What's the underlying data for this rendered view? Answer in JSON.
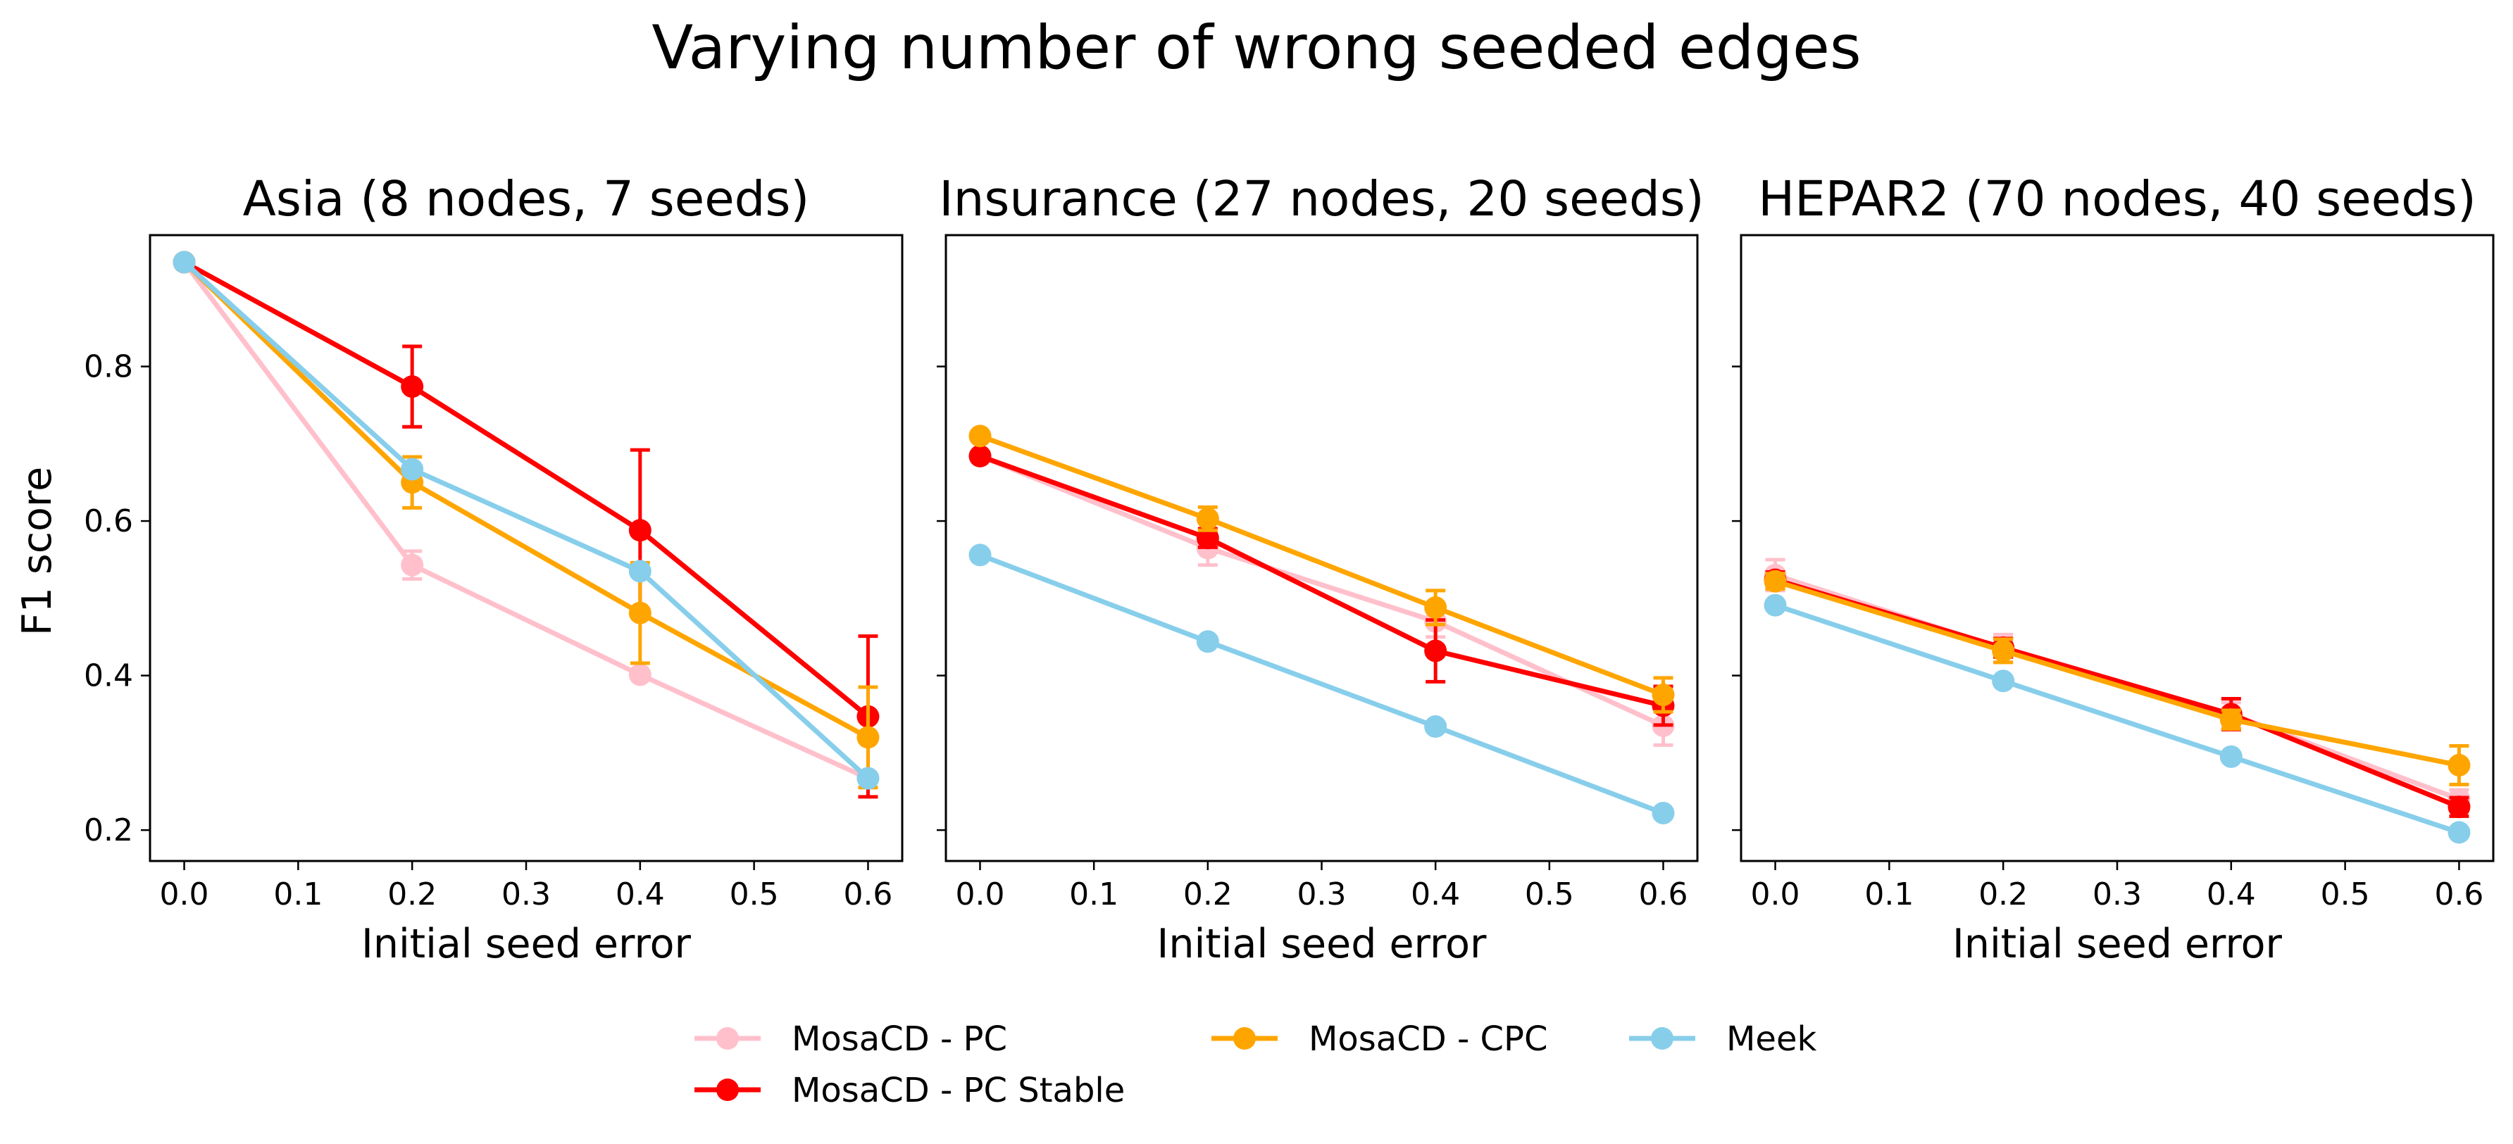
{
  "chart_data": {
    "type": "line",
    "title": "Varying number of wrong seeded edges",
    "ylabel": "F1 score",
    "xlim": [
      -0.03,
      0.63
    ],
    "ylim": [
      0.16,
      0.97
    ],
    "xticks": [
      "0.0",
      "0.1",
      "0.2",
      "0.3",
      "0.4",
      "0.5",
      "0.6"
    ],
    "yticks": [
      "0.2",
      "0.4",
      "0.6",
      "0.8"
    ],
    "colors": {
      "MosaCD - PC": "#ffc0cb",
      "MosaCD - PC Stable": "#ff0000",
      "MosaCD - CPC": "#ffa500",
      "Meek": "#87ceeb"
    },
    "legend": [
      {
        "label": "MosaCD - PC",
        "color": "#ffc0cb"
      },
      {
        "label": "MosaCD - PC Stable",
        "color": "#ff0000"
      },
      {
        "label": "MosaCD - CPC",
        "color": "#ffa500"
      },
      {
        "label": "Meek",
        "color": "#87ceeb"
      }
    ],
    "legend_position": "bottom-center",
    "panels": [
      {
        "title": "Asia (8 nodes, 7 seeds)",
        "xlabel": "Initial seed error",
        "x": [
          0.0,
          0.2,
          0.4,
          0.6
        ],
        "series": [
          {
            "name": "MosaCD - PC",
            "values": [
              0.935,
              0.543,
              0.401,
              0.267
            ],
            "errors": [
              0,
              0.018,
              0,
              0
            ]
          },
          {
            "name": "MosaCD - CPC",
            "values": [
              0.935,
              0.65,
              0.481,
              0.32
            ],
            "errors": [
              0,
              0.033,
              0.065,
              0.065
            ]
          },
          {
            "name": "Meek",
            "values": [
              0.935,
              0.667,
              0.535,
              0.267
            ],
            "errors": [
              0,
              0,
              0,
              0
            ]
          },
          {
            "name": "MosaCD - PC Stable",
            "values": [
              0.935,
              0.774,
              0.588,
              0.347
            ],
            "errors": [
              0,
              0.052,
              0.104,
              0.104
            ]
          }
        ]
      },
      {
        "title": "Insurance (27 nodes, 20 seeds)",
        "xlabel": "Initial seed error",
        "x": [
          0.0,
          0.2,
          0.4,
          0.6
        ],
        "series": [
          {
            "name": "MosaCD - PC",
            "values": [
              0.684,
              0.565,
              0.47,
              0.335
            ],
            "errors": [
              0,
              0.022,
              0.02,
              0.025
            ]
          },
          {
            "name": "MosaCD - CPC",
            "values": [
              0.71,
              0.603,
              0.488,
              0.375
            ],
            "errors": [
              0,
              0.015,
              0.022,
              0.022
            ]
          },
          {
            "name": "Meek",
            "values": [
              0.556,
              0.444,
              0.334,
              0.222
            ],
            "errors": [
              0,
              0,
              0,
              0
            ]
          },
          {
            "name": "MosaCD - PC Stable",
            "values": [
              0.684,
              0.578,
              0.432,
              0.361
            ],
            "errors": [
              0,
              0.012,
              0.04,
              0.025
            ]
          }
        ]
      },
      {
        "title": "HEPAR2 (70 nodes, 40 seeds)",
        "xlabel": "Initial seed error",
        "x": [
          0.0,
          0.2,
          0.4,
          0.6
        ],
        "series": [
          {
            "name": "MosaCD - PC",
            "values": [
              0.53,
              0.435,
              0.35,
              0.24
            ],
            "errors": [
              0.02,
              0.018,
              0.015,
              0.012
            ]
          },
          {
            "name": "MosaCD - CPC",
            "values": [
              0.522,
              0.432,
              0.343,
              0.284
            ],
            "errors": [
              0.01,
              0.015,
              0.012,
              0.025
            ]
          },
          {
            "name": "Meek",
            "values": [
              0.491,
              0.393,
              0.295,
              0.197
            ],
            "errors": [
              0,
              0,
              0,
              0
            ]
          },
          {
            "name": "MosaCD - PC Stable",
            "values": [
              0.524,
              0.436,
              0.35,
              0.23
            ],
            "errors": [
              0.01,
              0.012,
              0.02,
              0.012
            ]
          }
        ]
      }
    ]
  }
}
